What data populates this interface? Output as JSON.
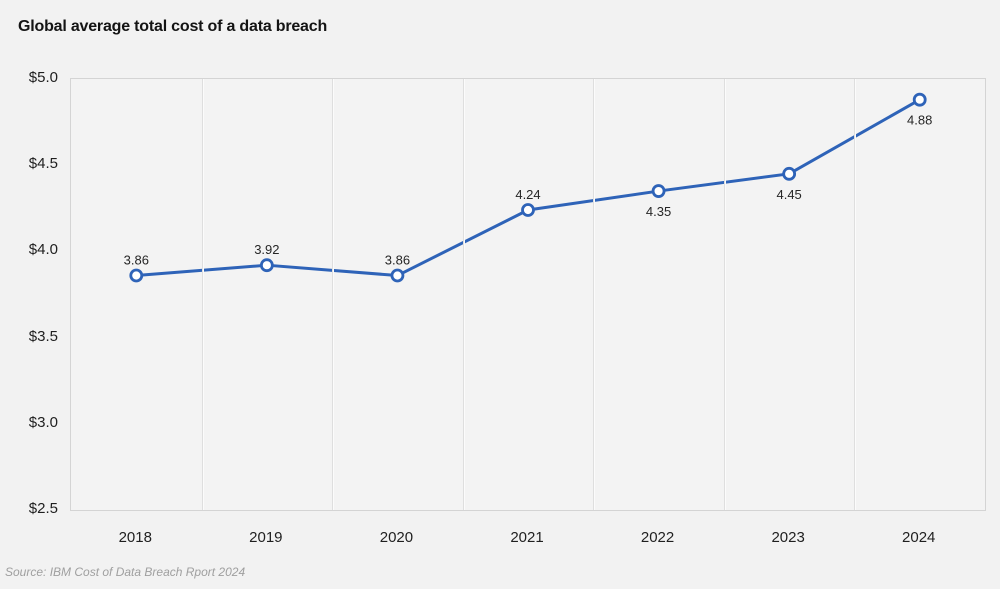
{
  "title": "Global average total cost of a data breach",
  "source": "Source: IBM Cost of Data Breach Rport 2024",
  "colors": {
    "line": "#2e63b8",
    "marker_fill": "#ffffff",
    "background": "#f2f2f2",
    "gridline": "#dedede",
    "plot_border": "#d4d4d4",
    "title_text": "#141414",
    "tick_text": "#1f1f1f",
    "label_text": "#262626",
    "source_text": "#9f9f9f"
  },
  "chart_data": {
    "type": "line",
    "title": "Global average total cost of a data breach",
    "categories": [
      "2018",
      "2019",
      "2020",
      "2021",
      "2022",
      "2023",
      "2024"
    ],
    "values": [
      3.86,
      3.92,
      3.86,
      4.24,
      4.35,
      4.45,
      4.88
    ],
    "data_labels": [
      "3.86",
      "3.92",
      "3.86",
      "4.24",
      "4.35",
      "4.45",
      "4.88"
    ],
    "label_positions": [
      "above",
      "above",
      "above",
      "above",
      "below",
      "below",
      "below"
    ],
    "xlabel": "",
    "ylabel": "",
    "y_ticks": [
      "$5.0",
      "$4.5",
      "$4.0",
      "$3.5",
      "$3.0",
      "$2.5"
    ],
    "ylim": [
      2.5,
      5.0
    ],
    "grid": "vertical-only",
    "legend": "none",
    "marker": "open-circle",
    "line_width": 3
  }
}
